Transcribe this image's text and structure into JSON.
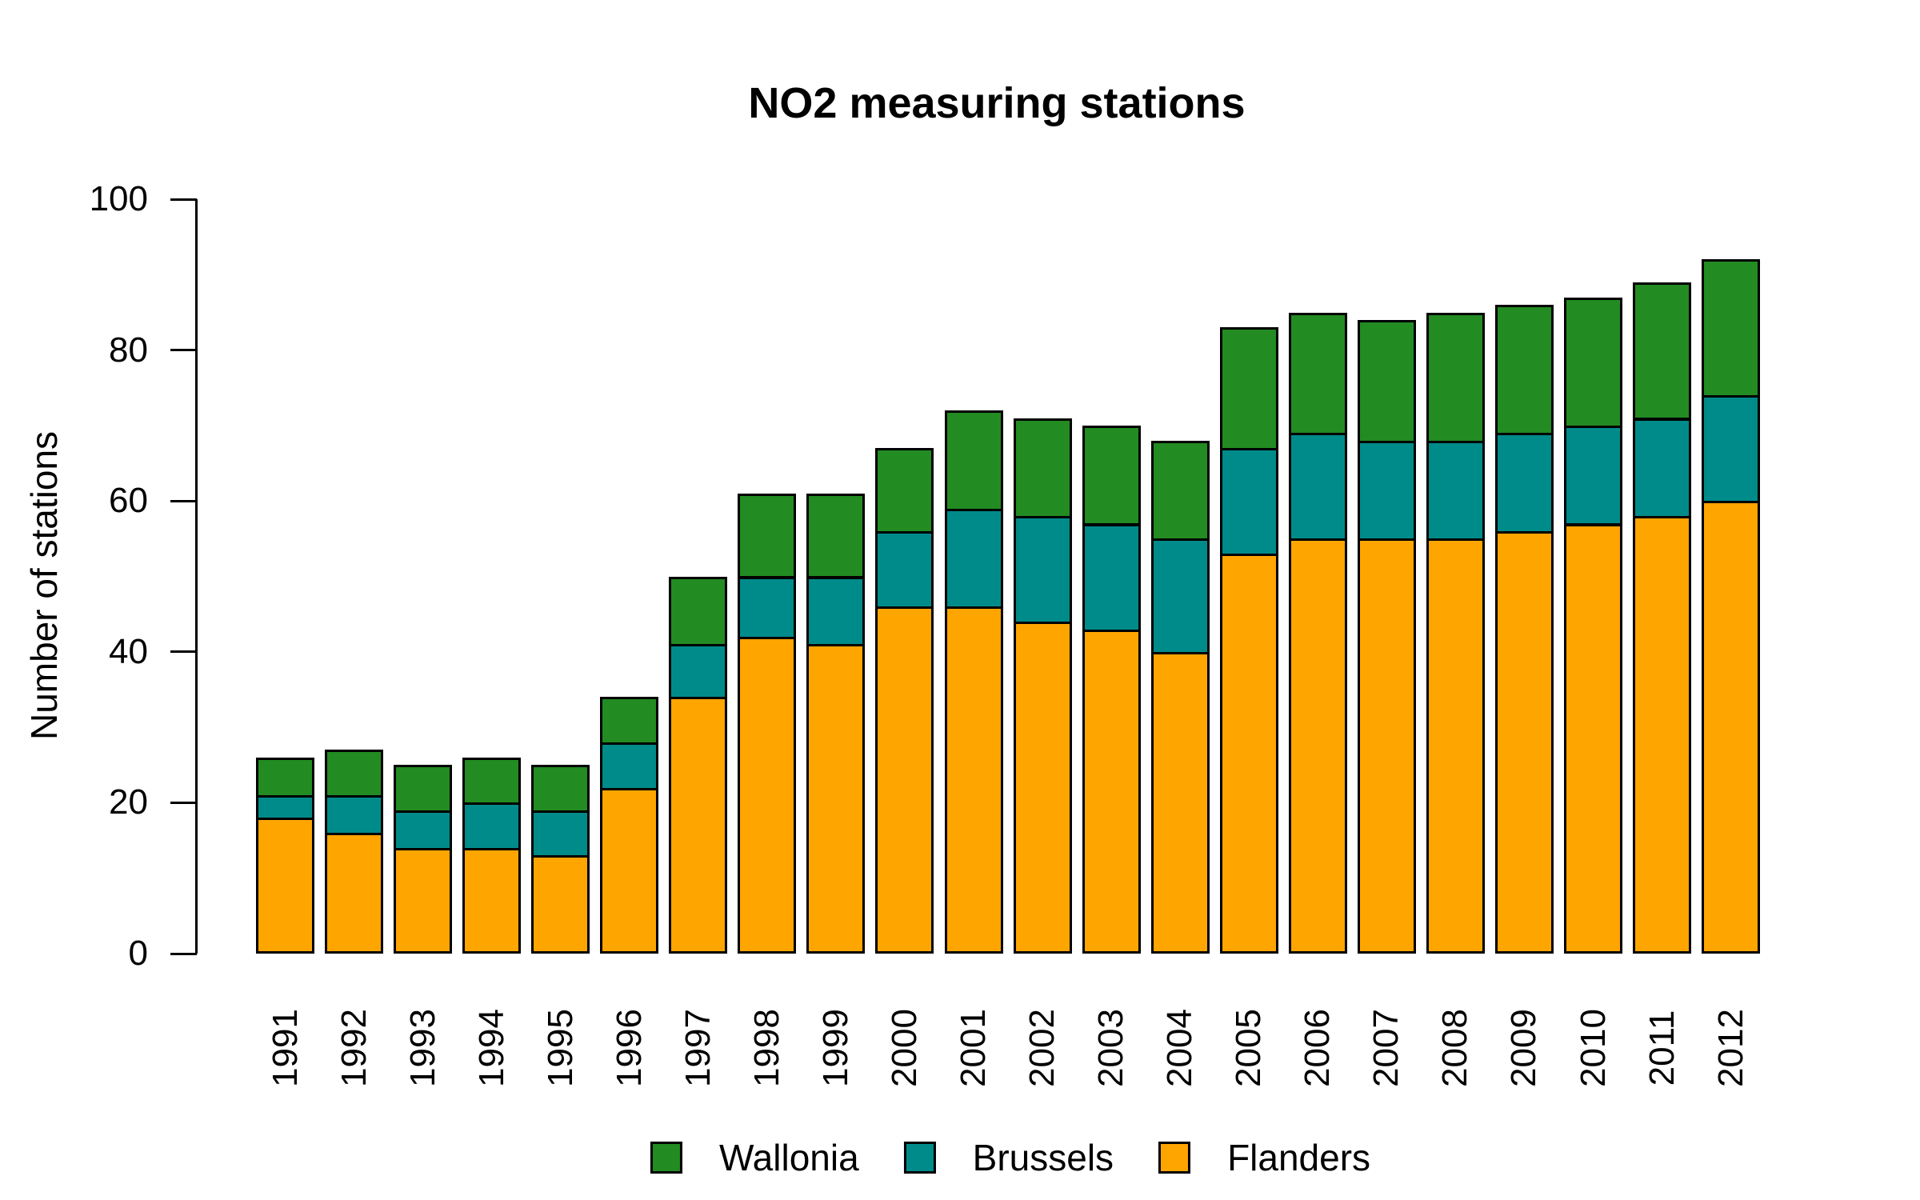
{
  "title": "NO2 measuring stations",
  "chart_data": {
    "type": "bar",
    "stacked": true,
    "title": "NO2 measuring stations",
    "xlabel": "",
    "ylabel": "Number of stations",
    "categories": [
      "1991",
      "1992",
      "1993",
      "1994",
      "1995",
      "1996",
      "1997",
      "1998",
      "1999",
      "2000",
      "2001",
      "2002",
      "2003",
      "2004",
      "2005",
      "2006",
      "2007",
      "2008",
      "2009",
      "2010",
      "2011",
      "2012"
    ],
    "series": [
      {
        "name": "Flanders",
        "color": "#FFA500",
        "values": [
          18,
          16,
          14,
          14,
          13,
          22,
          34,
          42,
          41,
          46,
          46,
          44,
          43,
          40,
          53,
          55,
          55,
          55,
          56,
          57,
          58,
          60
        ]
      },
      {
        "name": "Brussels",
        "color": "#008B8B",
        "values": [
          3,
          5,
          5,
          6,
          6,
          6,
          7,
          8,
          9,
          10,
          13,
          14,
          14,
          15,
          14,
          14,
          13,
          13,
          13,
          13,
          13,
          14
        ]
      },
      {
        "name": "Wallonia",
        "color": "#228B22",
        "values": [
          5,
          6,
          6,
          6,
          6,
          6,
          9,
          11,
          11,
          11,
          13,
          13,
          13,
          13,
          16,
          16,
          16,
          17,
          17,
          17,
          18,
          18
        ]
      }
    ],
    "totals": [
      26,
      27,
      25,
      26,
      25,
      34,
      50,
      61,
      61,
      67,
      72,
      71,
      70,
      68,
      83,
      85,
      84,
      85,
      86,
      87,
      89,
      92
    ],
    "ylim": [
      0,
      100
    ],
    "yticks": [
      "0",
      "20",
      "40",
      "60",
      "80",
      "100"
    ],
    "grid": false,
    "bar_border_color": "#000000",
    "legend_position": "bottom",
    "legend_order": [
      "Wallonia",
      "Brussels",
      "Flanders"
    ]
  }
}
